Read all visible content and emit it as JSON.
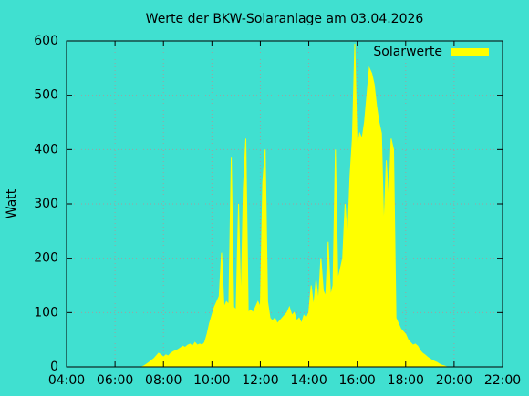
{
  "chart_data": {
    "type": "area",
    "title": "Werte der BKW-Solaranlage am 03.04.2026",
    "y_label": "Watt",
    "background": "#40e0d0",
    "grid": true,
    "legend": "top-right",
    "xlim": [
      4,
      22
    ],
    "xticks": [
      {
        "value": 4,
        "label": "04:00"
      },
      {
        "value": 6,
        "label": "06:00"
      },
      {
        "value": 8,
        "label": "08:00"
      },
      {
        "value": 10,
        "label": "10:00"
      },
      {
        "value": 12,
        "label": "12:00"
      },
      {
        "value": 14,
        "label": "14:00"
      },
      {
        "value": 16,
        "label": "16:00"
      },
      {
        "value": 18,
        "label": "18:00"
      },
      {
        "value": 20,
        "label": "20:00"
      },
      {
        "value": 22,
        "label": "22:00"
      }
    ],
    "ylim": [
      0,
      600
    ],
    "yticks": [
      0,
      100,
      200,
      300,
      400,
      500,
      600
    ],
    "x": [
      7.0,
      7.1,
      7.2,
      7.3,
      7.4,
      7.5,
      7.6,
      7.7,
      7.8,
      7.9,
      8.0,
      8.1,
      8.2,
      8.3,
      8.4,
      8.5,
      8.6,
      8.7,
      8.8,
      8.9,
      9.0,
      9.1,
      9.2,
      9.3,
      9.4,
      9.5,
      9.6,
      9.7,
      9.8,
      9.9,
      10.0,
      10.1,
      10.2,
      10.3,
      10.4,
      10.5,
      10.6,
      10.7,
      10.8,
      10.9,
      11.0,
      11.1,
      11.2,
      11.3,
      11.4,
      11.5,
      11.6,
      11.7,
      11.8,
      11.9,
      12.0,
      12.1,
      12.2,
      12.3,
      12.4,
      12.5,
      12.6,
      12.7,
      12.8,
      12.9,
      13.0,
      13.1,
      13.2,
      13.3,
      13.4,
      13.5,
      13.6,
      13.7,
      13.8,
      13.9,
      14.0,
      14.1,
      14.2,
      14.3,
      14.4,
      14.5,
      14.6,
      14.7,
      14.8,
      14.9,
      15.0,
      15.1,
      15.2,
      15.3,
      15.4,
      15.5,
      15.6,
      15.7,
      15.8,
      15.9,
      16.0,
      16.1,
      16.2,
      16.3,
      16.4,
      16.5,
      16.6,
      16.7,
      16.8,
      16.9,
      17.0,
      17.1,
      17.2,
      17.3,
      17.4,
      17.5,
      17.6,
      17.7,
      17.8,
      17.9,
      18.0,
      18.1,
      18.2,
      18.3,
      18.4,
      18.5,
      18.6,
      18.7,
      18.8,
      18.9,
      19.0,
      19.1,
      19.2,
      19.3,
      19.4,
      19.5,
      19.6,
      19.7,
      19.8
    ],
    "series": [
      {
        "name": "Solarwerte",
        "color": "#ffff00",
        "values": [
          0,
          0,
          2,
          5,
          8,
          12,
          15,
          20,
          25,
          22,
          18,
          22,
          20,
          25,
          28,
          30,
          32,
          35,
          38,
          36,
          40,
          42,
          38,
          45,
          40,
          42,
          40,
          45,
          60,
          80,
          95,
          110,
          120,
          130,
          210,
          110,
          120,
          115,
          385,
          110,
          105,
          300,
          110,
          330,
          420,
          100,
          105,
          100,
          110,
          120,
          110,
          340,
          400,
          120,
          90,
          85,
          90,
          80,
          85,
          90,
          95,
          100,
          110,
          95,
          100,
          85,
          90,
          80,
          95,
          90,
          100,
          150,
          110,
          160,
          120,
          200,
          140,
          130,
          230,
          130,
          150,
          400,
          160,
          180,
          200,
          300,
          230,
          350,
          420,
          595,
          400,
          430,
          420,
          450,
          500,
          550,
          540,
          520,
          480,
          450,
          430,
          250,
          380,
          300,
          420,
          400,
          90,
          80,
          70,
          65,
          60,
          50,
          45,
          40,
          42,
          38,
          30,
          25,
          22,
          18,
          15,
          12,
          10,
          8,
          5,
          3,
          2,
          0,
          0
        ]
      }
    ]
  }
}
